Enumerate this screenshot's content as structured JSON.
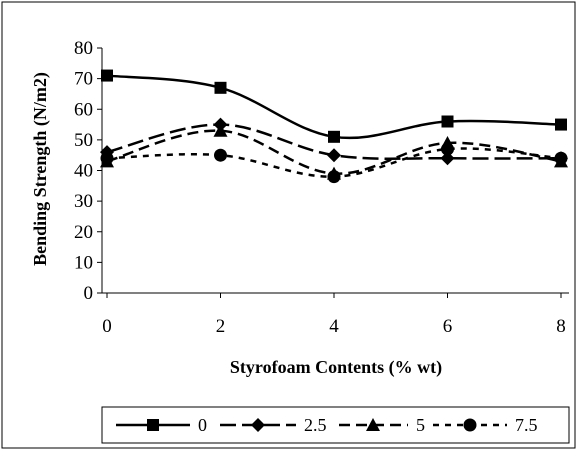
{
  "chart_data": {
    "type": "line",
    "title": "",
    "xlabel": "Styrofoam Contents (% wt)",
    "ylabel": "Bending Strength (N/m2)",
    "x": [
      0,
      2,
      4,
      6,
      8
    ],
    "xlim": [
      0,
      8
    ],
    "ylim": [
      0,
      80
    ],
    "x_ticks": [
      "0",
      "2",
      "4",
      "6",
      "8"
    ],
    "y_ticks": [
      "0",
      "10",
      "20",
      "30",
      "40",
      "50",
      "60",
      "70",
      "80"
    ],
    "grid": false,
    "legend_position": "bottom",
    "series": [
      {
        "name": "0",
        "values": [
          71,
          67,
          51,
          56,
          55
        ],
        "marker": "square",
        "dash": "solid"
      },
      {
        "name": "2.5",
        "values": [
          46,
          55,
          45,
          44,
          44
        ],
        "marker": "diamond",
        "dash": "long-dash"
      },
      {
        "name": "5",
        "values": [
          43,
          53,
          39,
          49,
          43
        ],
        "marker": "triangle",
        "dash": "dash"
      },
      {
        "name": "7.5",
        "values": [
          44,
          45,
          38,
          47,
          44
        ],
        "marker": "circle",
        "dash": "short-dash"
      }
    ]
  }
}
